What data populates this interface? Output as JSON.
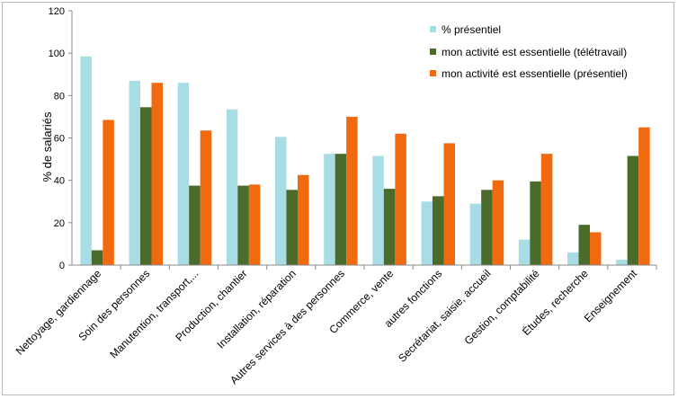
{
  "chart_data": {
    "type": "bar",
    "title": "",
    "xlabel": "",
    "ylabel": "% de salariés",
    "ylim": [
      0,
      120
    ],
    "yticks": [
      0,
      20,
      40,
      60,
      80,
      100,
      120
    ],
    "grid": false,
    "legend_position": "top-right",
    "categories": [
      "Nettoyage, gardiennage",
      "Soin des personnes",
      "Manutention, transport,...",
      "Production,  chantier",
      "Installation, réparation",
      "Autres services à des personnes",
      "Commerce, vente",
      "autres fonctions",
      "Secrétariat, saisie, accueil",
      "Gestion, comptabilité",
      "Études, recherche",
      "Enseignement"
    ],
    "series": [
      {
        "name": "% présentiel",
        "color": "#a9dde6",
        "values": [
          98.5,
          87,
          86,
          73.5,
          60.5,
          52.5,
          51.5,
          30,
          29,
          12,
          6,
          2.5
        ]
      },
      {
        "name": "mon activité est essentielle (télétravail)",
        "color": "#4a6b2a",
        "values": [
          7,
          74.5,
          37.5,
          37.5,
          35.5,
          52.5,
          36,
          32.5,
          35.5,
          39.5,
          19,
          51.5
        ]
      },
      {
        "name": "mon activité est essentielle (présentiel)",
        "color": "#f26a0f",
        "values": [
          68.5,
          86,
          63.5,
          38,
          42.5,
          70,
          62,
          57.5,
          40,
          52.5,
          15.5,
          65
        ]
      }
    ]
  }
}
